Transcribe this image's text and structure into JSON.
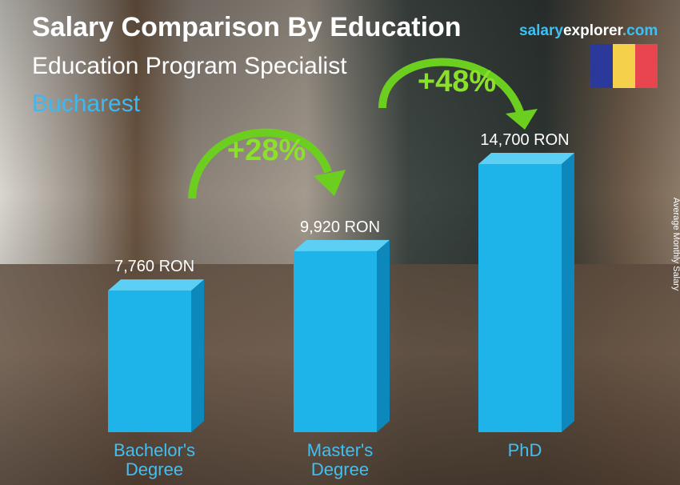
{
  "chart_data": {
    "type": "bar3d",
    "title": "Salary Comparison By Education",
    "subtitle": "Education Program Specialist",
    "location": "Bucharest",
    "brand": [
      "salary",
      "explorer",
      ".com"
    ],
    "y_label": "Average Monthly Salary",
    "categories": [
      "Bachelor's Degree",
      "Master's Degree",
      "PhD"
    ],
    "values": [
      7760,
      9920,
      14700
    ],
    "value_labels": [
      "7,760 RON",
      "9,920 RON",
      "14,700 RON"
    ],
    "color": "#1eb4ea",
    "annotations": [
      "+28%",
      "+48%"
    ]
  }
}
